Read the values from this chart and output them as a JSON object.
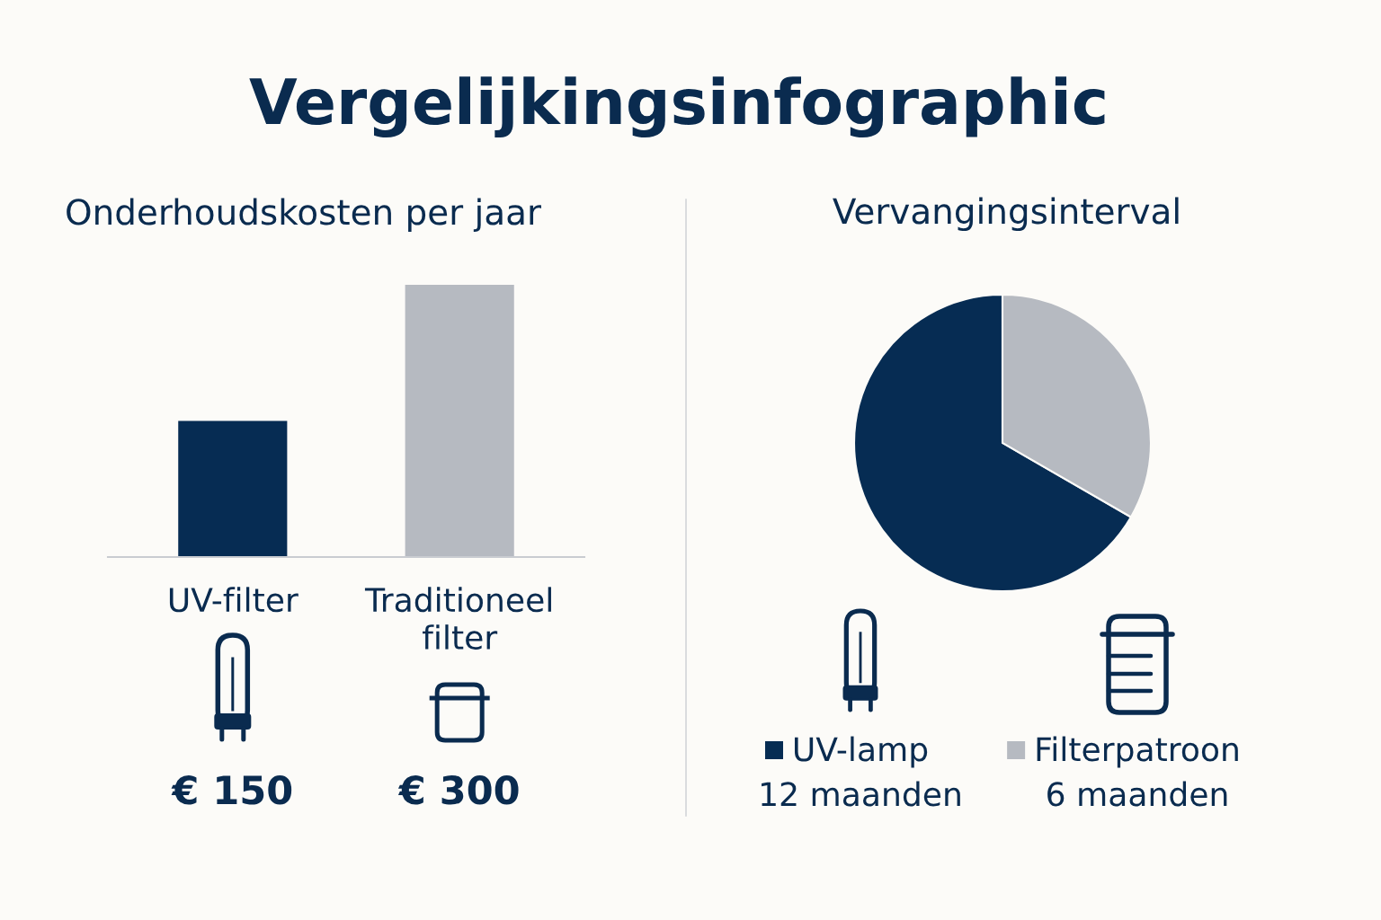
{
  "chart_data": [
    {
      "type": "other",
      "title": "Vergelijkingsinfographic"
    },
    {
      "type": "bar",
      "title": "Onderhoudskosten per jaar",
      "categories": [
        "UV-filter",
        "Traditioneel filter"
      ],
      "values": [
        150,
        300
      ],
      "colors": [
        "#062c53",
        "#b6bac1"
      ],
      "value_labels": [
        "€ 150",
        "€ 300"
      ]
    },
    {
      "type": "pie",
      "title": "Vervangingsinterval",
      "categories": [
        "UV-lamp",
        "Filterpatroon"
      ],
      "values": [
        12,
        6
      ],
      "colors": [
        "#062c53",
        "#b6bac1"
      ],
      "value_labels": [
        "12 maanden",
        "6 maanden"
      ],
      "legend": "bottom"
    }
  ]
}
